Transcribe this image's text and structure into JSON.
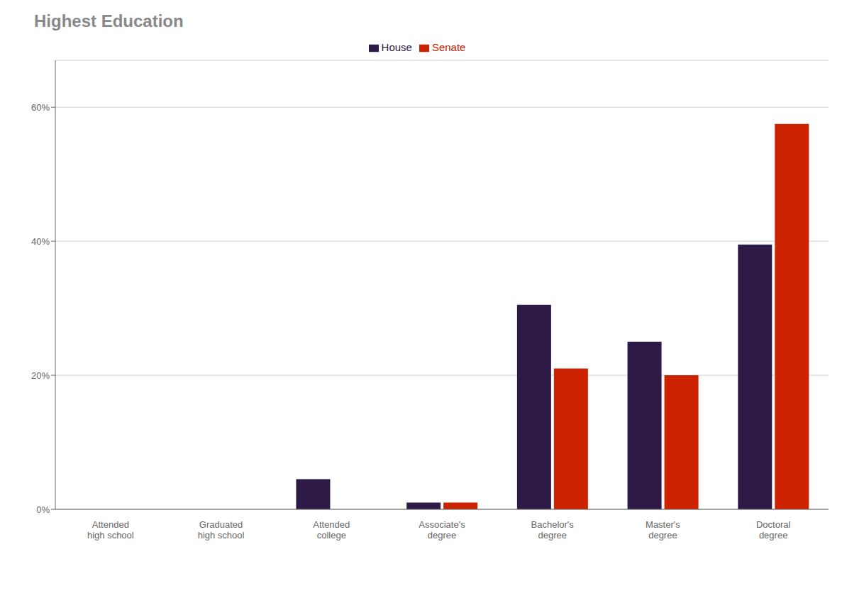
{
  "chart_data": {
    "type": "bar",
    "title": "Highest Education",
    "categories": [
      "Attended\nhigh school",
      "Graduated\nhigh school",
      "Attended\ncollege",
      "Associate's\ndegree",
      "Bachelor's\ndegree",
      "Master's\ndegree",
      "Doctoral\ndegree"
    ],
    "series": [
      {
        "name": "House",
        "color": "#2E1A47",
        "values": [
          0.0,
          0.0,
          4.5,
          1.0,
          30.5,
          25.0,
          39.5
        ]
      },
      {
        "name": "Senate",
        "color": "#CC2200",
        "values": [
          0.0,
          0.0,
          0.0,
          1.0,
          21.0,
          20.0,
          57.5
        ]
      }
    ],
    "ylim": [
      0,
      67
    ],
    "yticks": [
      {
        "value": 0,
        "label": "0%"
      },
      {
        "value": 20,
        "label": "20%"
      },
      {
        "value": 40,
        "label": "40%"
      },
      {
        "value": 60,
        "label": "60%"
      }
    ],
    "grid": true,
    "legend": "top"
  }
}
